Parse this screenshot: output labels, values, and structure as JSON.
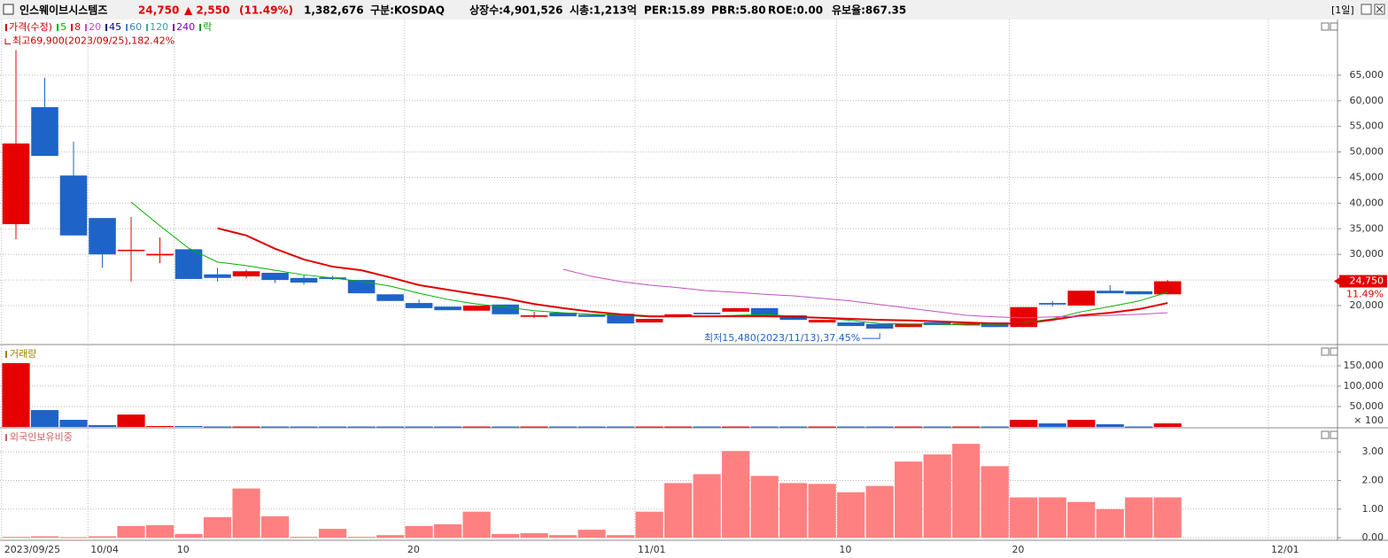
{
  "header": {
    "name": "인스웨이브시스템즈",
    "price": "24,750",
    "change": "▲ 2,550",
    "change_pct": "(11.49%)",
    "volume": "1,382,676",
    "market": "구분:KOSDAQ",
    "listed": "상장수:4,901,526",
    "cap": "시총:1,213억",
    "per": "PER:15.89",
    "pbr": "PBR:5.80",
    "roe": "ROE:0.00",
    "reserve": "유보율:867.35",
    "period": "[1일]"
  },
  "chart_data": [
    {
      "type": "candlestick",
      "name": "가격(수정)",
      "name_color": "#c00000",
      "ex_rights_label": "락",
      "ex_rights_color": "#00a000",
      "up_color": "#e60000",
      "down_color": "#1e64c8",
      "open": [
        35900,
        58750,
        45400,
        37100,
        30700,
        29800,
        31000,
        26100,
        25700,
        26400,
        25400,
        25500,
        25000,
        22200,
        20500,
        19800,
        19000,
        20200,
        17800,
        18600,
        18200,
        18400,
        16700,
        17800,
        18600,
        18800,
        19500,
        18100,
        16700,
        16700,
        16400,
        15800,
        16700,
        16200,
        16700,
        15800,
        20500,
        20000,
        22900,
        22800,
        22200
      ],
      "high": [
        69900,
        64460,
        52000,
        37100,
        37300,
        33300,
        31000,
        27400,
        27000,
        26400,
        26000,
        25800,
        25000,
        22200,
        21200,
        19800,
        20000,
        20200,
        18800,
        18600,
        18200,
        18400,
        17400,
        18300,
        18600,
        19500,
        19500,
        18100,
        17200,
        16700,
        16400,
        16400,
        16700,
        16500,
        16700,
        19700,
        20900,
        22900,
        24000,
        22800,
        25000
      ],
      "low": [
        32980,
        49240,
        33700,
        27400,
        24700,
        28300,
        25200,
        24700,
        25300,
        24400,
        24100,
        25000,
        22400,
        20900,
        19500,
        19100,
        19000,
        18300,
        17600,
        17900,
        17800,
        16500,
        16700,
        17800,
        18300,
        18800,
        17800,
        17200,
        16700,
        16000,
        15480,
        15800,
        16200,
        16200,
        15800,
        15800,
        19800,
        20000,
        22400,
        22200,
        22200
      ],
      "close": [
        51660,
        49240,
        33700,
        30000,
        30900,
        30100,
        25200,
        25400,
        26700,
        25000,
        24500,
        25200,
        22400,
        20900,
        19500,
        19100,
        20000,
        18300,
        18100,
        17900,
        17800,
        16500,
        17400,
        18300,
        18300,
        19500,
        17800,
        17200,
        17200,
        16000,
        15500,
        16400,
        16200,
        16500,
        15800,
        19700,
        20200,
        22900,
        22400,
        22200,
        24750
      ],
      "series": [
        {
          "name": "5",
          "color": "#00b000",
          "values": [
            null,
            null,
            null,
            null,
            40200,
            35600,
            31200,
            28500,
            27800,
            26900,
            26000,
            25400,
            24700,
            23800,
            22400,
            21200,
            20300,
            19700,
            19000,
            18600,
            18300,
            18100,
            17800,
            17800,
            17900,
            18100,
            18300,
            17900,
            17600,
            17100,
            16500,
            16400,
            16400,
            16200,
            16200,
            16700,
            17400,
            18800,
            19800,
            20900,
            22600
          ]
        },
        {
          "name": "8",
          "color": "#e00000",
          "values": [
            null,
            null,
            null,
            null,
            null,
            null,
            null,
            35100,
            33700,
            31100,
            29000,
            27600,
            26900,
            25500,
            24000,
            23100,
            22200,
            21400,
            20300,
            19500,
            18800,
            18300,
            17900,
            17900,
            17900,
            17900,
            17900,
            17800,
            17600,
            17400,
            17200,
            17100,
            16900,
            16700,
            16500,
            16500,
            17200,
            18100,
            18600,
            19300,
            20500
          ]
        },
        {
          "name": "20",
          "color": "#c050c0",
          "values": [
            null,
            null,
            null,
            null,
            null,
            null,
            null,
            null,
            null,
            null,
            null,
            null,
            null,
            null,
            null,
            null,
            null,
            null,
            null,
            27100,
            25700,
            24700,
            24000,
            23500,
            22900,
            22600,
            22200,
            21900,
            21400,
            20900,
            20200,
            19500,
            18800,
            18100,
            17800,
            17600,
            17800,
            17900,
            18100,
            18300,
            18600
          ]
        }
      ],
      "inactive_legend": [
        {
          "name": "45",
          "color": "#000080"
        },
        {
          "name": "60",
          "color": "#4080c0"
        },
        {
          "name": "120",
          "color": "#40a0a0"
        },
        {
          "name": "240",
          "color": "#8000c0"
        }
      ],
      "high_label": "최고69,900(2023/09/25),182.42%",
      "low_label": "최저15,480(2023/11/13),37.45%",
      "last_label": "24,750",
      "last_change": "11.49%",
      "ylim": [
        12560,
        75880
      ],
      "yticks": [
        {
          "value": 20000,
          "label": "20,000"
        },
        {
          "value": 25000,
          "label": "25,000"
        },
        {
          "value": 30000,
          "label": "30,000"
        },
        {
          "value": 35000,
          "label": "35,000"
        },
        {
          "value": 40000,
          "label": "40,000"
        },
        {
          "value": 45000,
          "label": "45,000"
        },
        {
          "value": 50000,
          "label": "50,000"
        },
        {
          "value": 55000,
          "label": "55,000"
        },
        {
          "value": 60000,
          "label": "60,000"
        },
        {
          "value": 65000,
          "label": "65,000"
        }
      ],
      "grid": true
    },
    {
      "type": "bar",
      "name": "거래량",
      "name_color": "#a08000",
      "unit_label": "× 100",
      "values": [
        156500,
        41300,
        17400,
        4300,
        30400,
        2200,
        2200,
        1000,
        1000,
        1000,
        1000,
        1000,
        1000,
        1000,
        1000,
        1000,
        1000,
        1000,
        1000,
        1000,
        1000,
        1000,
        1000,
        1000,
        1000,
        1000,
        1000,
        1000,
        1000,
        1000,
        1000,
        1000,
        1000,
        1000,
        1000,
        17400,
        8700,
        17400,
        6500,
        1000,
        8700
      ],
      "ylim": [
        0,
        200000
      ],
      "yticks": [
        {
          "value": 50000,
          "label": "50,000"
        },
        {
          "value": 100000,
          "label": "100,000"
        },
        {
          "value": 150000,
          "label": "150,000"
        }
      ],
      "grid": true
    },
    {
      "type": "bar",
      "name": "외국인보유비중",
      "name_color": "#d06060",
      "color": "#ff8080",
      "values": [
        0.03,
        0.05,
        0.02,
        0.05,
        0.41,
        0.44,
        0.13,
        0.72,
        1.72,
        0.75,
        0.03,
        0.31,
        0.03,
        0.09,
        0.41,
        0.47,
        0.91,
        0.13,
        0.16,
        0.09,
        0.28,
        0.09,
        0.91,
        1.91,
        2.22,
        3.03,
        2.16,
        1.91,
        1.88,
        1.59,
        1.81,
        2.66,
        2.91,
        3.28,
        2.5,
        1.41,
        1.41,
        1.25,
        1,
        1.41,
        1.41
      ],
      "ylim": [
        -0.09,
        3.81
      ],
      "yticks": [
        {
          "value": 0,
          "label": "0.00"
        },
        {
          "value": 1,
          "label": "1.00"
        },
        {
          "value": 2,
          "label": "2.00"
        },
        {
          "value": 3,
          "label": "3.00"
        }
      ],
      "xlim": [
        -0.554,
        45.9
      ],
      "xticks": [
        {
          "value": 0,
          "label": "2023/09/25"
        },
        {
          "value": 3,
          "label": "10/04"
        },
        {
          "value": 6,
          "label": "10"
        },
        {
          "value": 14,
          "label": "20"
        },
        {
          "value": 22,
          "label": "11/01"
        },
        {
          "value": 29,
          "label": "10"
        },
        {
          "value": 35,
          "label": "20"
        },
        {
          "value": 44,
          "label": "12/01"
        }
      ],
      "grid": true
    }
  ]
}
